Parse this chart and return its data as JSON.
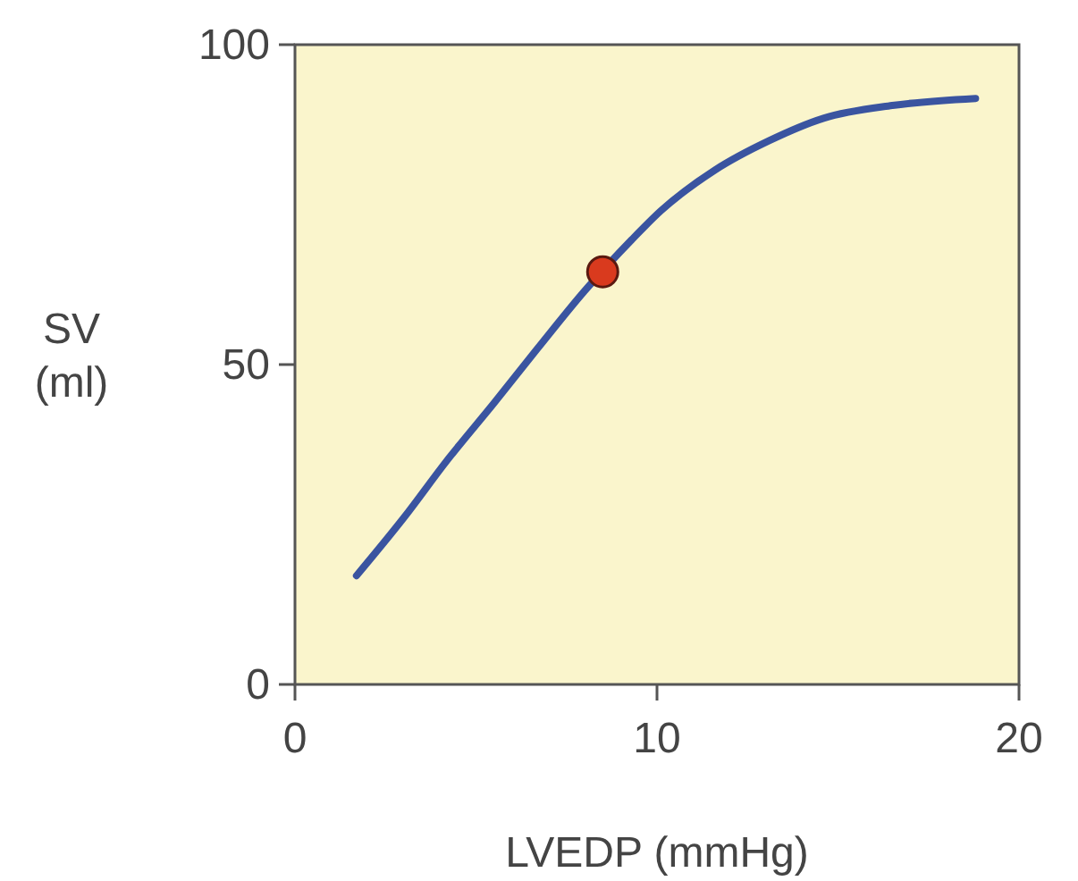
{
  "chart_data": {
    "type": "line",
    "xlabel": "LVEDP (mmHg)",
    "ylabel": "SV (ml)",
    "xlim": [
      0,
      20
    ],
    "ylim": [
      0,
      100
    ],
    "xticks": [
      0,
      10,
      20
    ],
    "yticks": [
      0,
      50,
      100
    ],
    "grid": false,
    "series": [
      {
        "color": "#3a54a0",
        "x": [
          1.7,
          3,
          4.2,
          5.5,
          6.7,
          8,
          9.3,
          10.1,
          11.6,
          13.1,
          14.6,
          16.5,
          18.8
        ],
        "values": [
          17,
          26,
          35,
          44,
          52.5,
          61.5,
          69.5,
          74,
          80.4,
          85,
          88.5,
          90.5,
          91.6
        ]
      },
      {
        "type": "scatter",
        "color": "#d93a1e",
        "marker": "circle",
        "x": [
          8.5
        ],
        "values": [
          64.5
        ]
      }
    ]
  }
}
